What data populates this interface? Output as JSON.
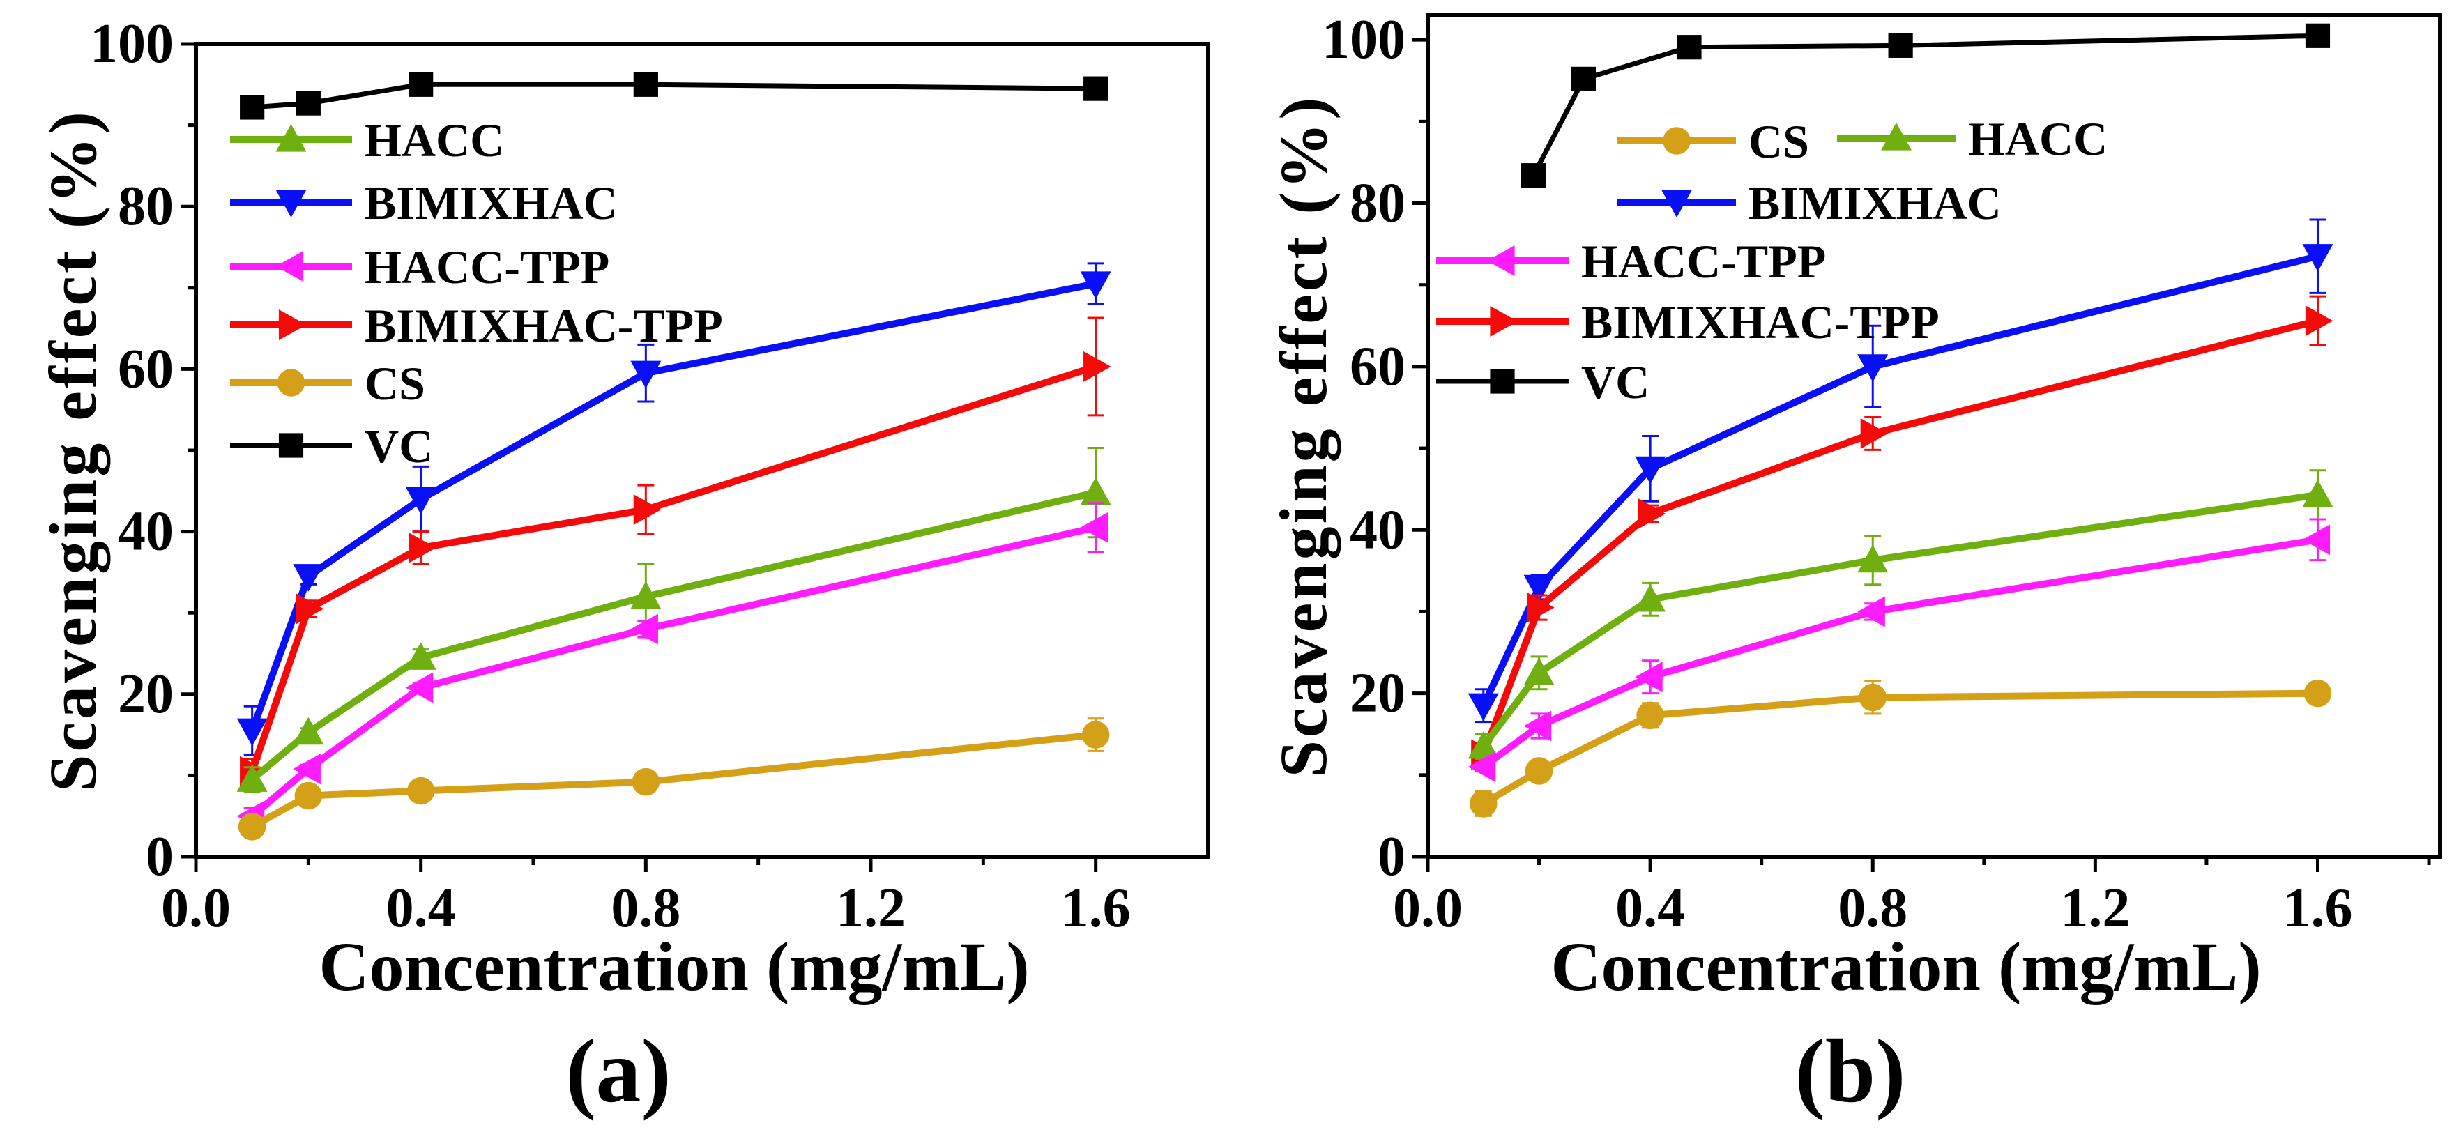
{
  "colors": {
    "CS": "#d4a017",
    "HACC": "#6fb010",
    "BIMIXHAC": "#0a10f5",
    "HACC-TPP": "#ff1cff",
    "BIMIXHAC-TPP": "#f50a0a",
    "VC": "#000000"
  },
  "markers": {
    "CS": "circle",
    "HACC": "triangle-up",
    "BIMIXHAC": "triangle-down",
    "HACC-TPP": "triangle-left",
    "BIMIXHAC-TPP": "triangle-right",
    "VC": "square"
  },
  "chart_data": [
    {
      "type": "line",
      "panel_label": "(a)",
      "xlabel": "Concentration (mg/mL)",
      "ylabel": "Scavenging effect (%)",
      "xlim": [
        0,
        1.8
      ],
      "ylim": [
        0,
        100
      ],
      "xticks": [
        "0.0",
        "0.4",
        "0.8",
        "1.2",
        "1.6"
      ],
      "yticks": [
        "0",
        "20",
        "40",
        "60",
        "80",
        "100"
      ],
      "legend_order": [
        "HACC",
        "BIMIXHAC",
        "HACC-TPP",
        "BIMIXHAC-TPP",
        "CS",
        "VC"
      ],
      "legend_placement": "top-left",
      "series": [
        {
          "name": "VC",
          "x": [
            0.1,
            0.2,
            0.4,
            0.8,
            1.6
          ],
          "values": [
            92.2,
            92.7,
            95,
            95,
            94.5
          ],
          "err": [
            0.5,
            0.5,
            0.5,
            0.5,
            0.5
          ]
        },
        {
          "name": "BIMIXHAC",
          "x": [
            0.1,
            0.2,
            0.4,
            0.8,
            1.6
          ],
          "values": [
            15.5,
            34.5,
            44,
            59.5,
            70.5
          ],
          "err": [
            3,
            1,
            4,
            3.5,
            2.5
          ]
        },
        {
          "name": "BIMIXHAC-TPP",
          "x": [
            0.1,
            0.2,
            0.4,
            0.8,
            1.6
          ],
          "values": [
            10.5,
            30.5,
            38,
            42.7,
            60.3
          ],
          "err": [
            1.5,
            1,
            2,
            3,
            6
          ]
        },
        {
          "name": "HACC",
          "x": [
            0.1,
            0.2,
            0.4,
            0.8,
            1.6
          ],
          "values": [
            9.5,
            15.3,
            24.5,
            32,
            44.8
          ],
          "err": [
            1.5,
            0.5,
            1,
            4,
            5.5
          ]
        },
        {
          "name": "HACC-TPP",
          "x": [
            0.1,
            0.2,
            0.4,
            0.8,
            1.6
          ],
          "values": [
            5,
            10.8,
            20.8,
            28,
            40.5
          ],
          "err": [
            1,
            0.5,
            0.5,
            1,
            3
          ]
        },
        {
          "name": "CS",
          "x": [
            0.1,
            0.2,
            0.4,
            0.8,
            1.6
          ],
          "values": [
            3.7,
            7.5,
            8.1,
            9.2,
            15
          ],
          "err": [
            0.8,
            0.5,
            0.5,
            0.5,
            2
          ]
        }
      ]
    },
    {
      "type": "line",
      "panel_label": "(b)",
      "xlabel": "Concentration (mg/mL)",
      "ylabel": "Scavenging effect (%)",
      "xlim": [
        0,
        1.82
      ],
      "ylim": [
        0,
        103
      ],
      "xticks": [
        "0.0",
        "0.4",
        "0.8",
        "1.2",
        "1.6"
      ],
      "yticks": [
        "0",
        "20",
        "40",
        "60",
        "80",
        "100"
      ],
      "legend_order": [
        "CS",
        "HACC",
        "BIMIXHAC",
        "HACC-TPP",
        "BIMIXHAC-TPP",
        "VC"
      ],
      "legend_placement": "top-left",
      "series": [
        {
          "name": "VC",
          "x": [
            0.19,
            0.28,
            0.47,
            0.85,
            1.6
          ],
          "values": [
            83.4,
            95.2,
            99.1,
            99.3,
            100.5
          ],
          "err": [
            0.5,
            0.5,
            0.5,
            0.5,
            0.5
          ]
        },
        {
          "name": "BIMIXHAC",
          "x": [
            0.1,
            0.2,
            0.4,
            0.8,
            1.6
          ],
          "values": [
            18.5,
            33,
            47.5,
            60,
            73.5
          ],
          "err": [
            2,
            1.5,
            4,
            5,
            4.5
          ]
        },
        {
          "name": "BIMIXHAC-TPP",
          "x": [
            0.1,
            0.2,
            0.4,
            0.8,
            1.6
          ],
          "values": [
            12.5,
            30.5,
            42,
            51.8,
            65.6
          ],
          "err": [
            1,
            1.5,
            1,
            2,
            3
          ]
        },
        {
          "name": "HACC",
          "x": [
            0.1,
            0.2,
            0.4,
            0.8,
            1.6
          ],
          "values": [
            13.5,
            22.5,
            31.5,
            36.3,
            44.3
          ],
          "err": [
            1.5,
            2,
            2,
            3,
            3
          ]
        },
        {
          "name": "HACC-TPP",
          "x": [
            0.1,
            0.2,
            0.4,
            0.8,
            1.6
          ],
          "values": [
            11,
            16,
            22,
            30,
            38.8
          ],
          "err": [
            0.5,
            1.5,
            2,
            1,
            2.5
          ]
        },
        {
          "name": "CS",
          "x": [
            0.1,
            0.2,
            0.4,
            0.8,
            1.6
          ],
          "values": [
            6.5,
            10.5,
            17.3,
            19.5,
            20
          ],
          "err": [
            1.5,
            1,
            1.5,
            2,
            0.5
          ]
        }
      ]
    }
  ]
}
